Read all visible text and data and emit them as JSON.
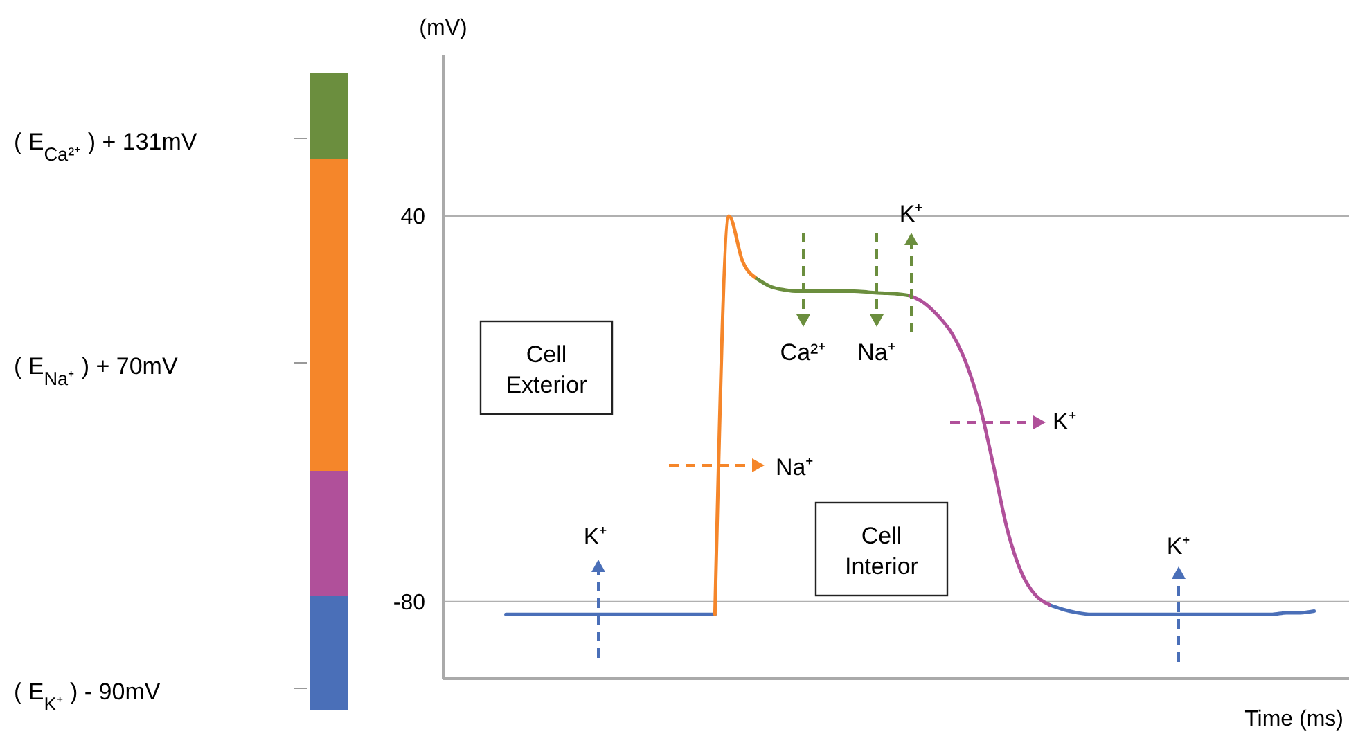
{
  "chart_data": {
    "type": "line",
    "xlabel": "Time (ms)",
    "ylabel": "(mV)",
    "categories": [
      null,
      null,
      null,
      null,
      null,
      null,
      null,
      null,
      null,
      null,
      null,
      null,
      null,
      null,
      null,
      null,
      null,
      null,
      null,
      null,
      null,
      null,
      null,
      null,
      null,
      null,
      null,
      null,
      null,
      null,
      null,
      null,
      null,
      null,
      null,
      null,
      null,
      null,
      null,
      null,
      null,
      null,
      null,
      null,
      null,
      null,
      null,
      null,
      null,
      null,
      null,
      null,
      null,
      null,
      null,
      null,
      null,
      null,
      null,
      null,
      null,
      null,
      null,
      null,
      null
    ],
    "series": [
      {
        "color": "#4a6fb8",
        "values": [
          null,
          null,
          null,
          null,
          -84,
          -84,
          -84,
          -84,
          -84,
          -84,
          -84,
          -84,
          -84,
          -84,
          -84,
          -84,
          -84,
          -84,
          -84,
          -84,
          null,
          null,
          null,
          null,
          null,
          null,
          null,
          null,
          null,
          null,
          null,
          null,
          null,
          null,
          null,
          null,
          null,
          null,
          null,
          null,
          null,
          null,
          null,
          -81,
          -82.5,
          -83.5,
          -84,
          -84,
          -84,
          -84,
          -84,
          -84,
          -84,
          -84,
          -84,
          -84,
          -84,
          -84,
          -84,
          -84,
          -83.5,
          -83.5,
          -83,
          null,
          null
        ]
      },
      {
        "color": "#f5862a",
        "values": [
          null,
          null,
          null,
          null,
          null,
          null,
          null,
          null,
          null,
          null,
          null,
          null,
          null,
          null,
          null,
          null,
          null,
          null,
          null,
          -84,
          40,
          25.7,
          20.5,
          null,
          null,
          null,
          null,
          null,
          null,
          null,
          null,
          null,
          null,
          null,
          null,
          null,
          null,
          null,
          null,
          null,
          null,
          null,
          null,
          null,
          null,
          null,
          null,
          null,
          null,
          null,
          null,
          null,
          null,
          null,
          null,
          null,
          null,
          null,
          null,
          null,
          null,
          null,
          null,
          null,
          null
        ]
      },
      {
        "color": "#6b8e3e",
        "values": [
          null,
          null,
          null,
          null,
          null,
          null,
          null,
          null,
          null,
          null,
          null,
          null,
          null,
          null,
          null,
          null,
          null,
          null,
          null,
          null,
          null,
          null,
          20.5,
          18,
          17,
          16.6,
          16.6,
          16.6,
          16.6,
          16.6,
          16.3,
          16,
          15.8,
          15.2,
          null,
          null,
          null,
          null,
          null,
          null,
          null,
          null,
          null,
          null,
          null,
          null,
          null,
          null,
          null,
          null,
          null,
          null,
          null,
          null,
          null,
          null,
          null,
          null,
          null,
          null,
          null,
          null,
          null,
          null,
          null
        ]
      },
      {
        "color": "#b0509a",
        "values": [
          null,
          null,
          null,
          null,
          null,
          null,
          null,
          null,
          null,
          null,
          null,
          null,
          null,
          null,
          null,
          null,
          null,
          null,
          null,
          null,
          null,
          null,
          null,
          null,
          null,
          null,
          null,
          null,
          null,
          null,
          null,
          null,
          null,
          15.2,
          13,
          9,
          3.5,
          -5.5,
          -19,
          -38,
          -58,
          -71,
          -78,
          -81,
          null,
          null,
          null,
          null,
          null,
          null,
          null,
          null,
          null,
          null,
          null,
          null,
          null,
          null,
          null,
          null,
          null,
          null,
          null,
          null,
          null
        ]
      }
    ],
    "ylim": [
      -104,
      90
    ],
    "yticks": [
      -80,
      40
    ],
    "grid": "y",
    "tick_labels": "y",
    "line_style": "solid",
    "marker": "none",
    "annotations": [
      "( E$_{Ca²⁺}$ )  + 131mV",
      "( E$_{Na⁺}$ ) + 70mV",
      "( E$_{K⁺}$ ) - 90mV",
      "Cell Exterior",
      "Cell Interior",
      "K⁺",
      "Na⁺",
      "Ca²⁺",
      "Na⁺",
      "K⁺",
      "K⁺",
      "K⁺"
    ]
  }
}
